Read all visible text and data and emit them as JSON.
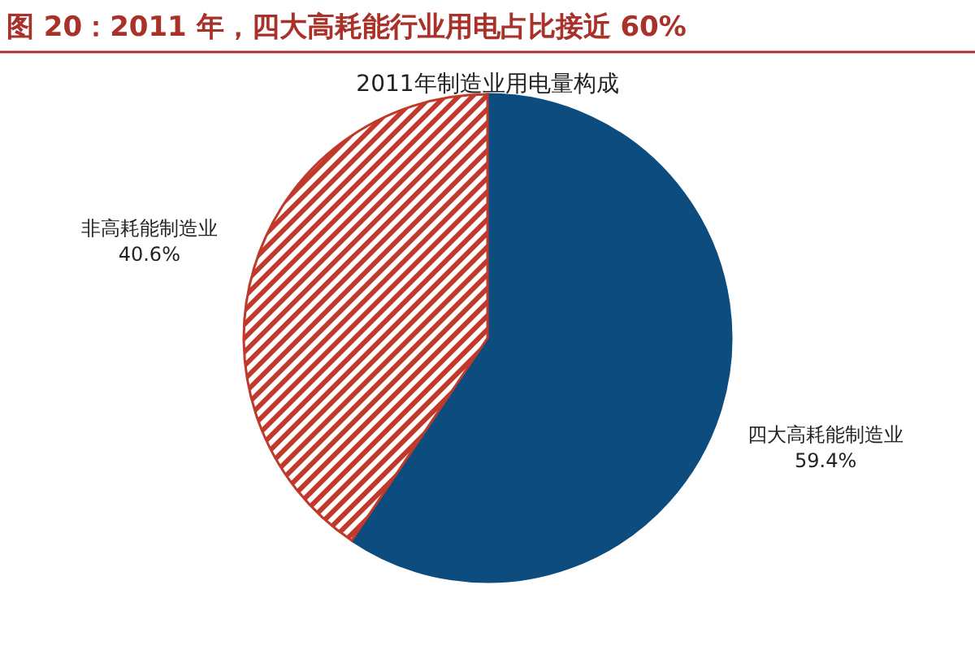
{
  "chart_data": {
    "type": "pie",
    "title": "图 20：2011 年，四大高耗能行业用电占比接近 60%",
    "subtitle": "2011年制造业用电量构成",
    "categories": [
      "四大高耗能制造业",
      "非高耗能制造业"
    ],
    "values": [
      59.4,
      40.6
    ],
    "colors": [
      "#0d4c7e",
      "#c0392b"
    ],
    "value_labels": [
      "59.4%",
      "40.6%"
    ]
  }
}
